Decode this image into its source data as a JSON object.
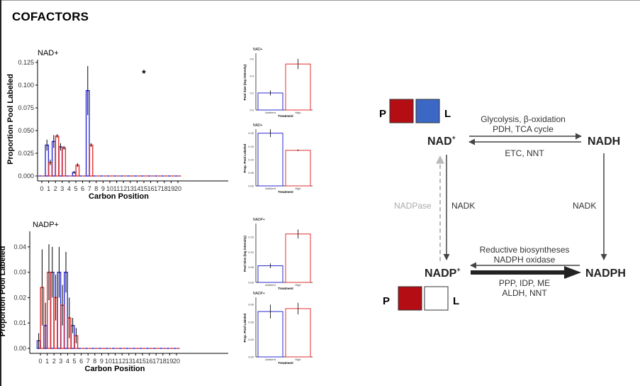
{
  "title": "COFACTORS",
  "colors": {
    "ambient": "#2b2bd0",
    "high": "#e03030",
    "p_box": "#b50d14",
    "l_box_top": "#3b68c4",
    "l_box_bottom": "#ffffff",
    "nadpase_arrow": "#bbbbbb"
  },
  "chart_data": [
    {
      "type": "bar",
      "title": "NAD+",
      "xlabel": "Carbon Position",
      "ylabel": "Proportion Pool Labeled",
      "ylim": [
        0,
        0.125
      ],
      "yticks": [
        "0.000",
        "0.025",
        "0.050",
        "0.075",
        "0.100",
        "0.125"
      ],
      "categories": [
        "0",
        "1",
        "2",
        "3",
        "4",
        "5",
        "6",
        "7",
        "8",
        "9",
        "10",
        "11",
        "12",
        "13",
        "14",
        "15",
        "16",
        "17",
        "18",
        "19",
        "20"
      ],
      "annotation": {
        "text": "*",
        "at_category": "15"
      },
      "series": [
        {
          "values": [
            0,
            0.034,
            0.038,
            0.032,
            0,
            0.004,
            0,
            0.094,
            0,
            0,
            0,
            0,
            0,
            0,
            0,
            0,
            0,
            0,
            0,
            0,
            0
          ],
          "errors": [
            0,
            0.006,
            0.007,
            0.004,
            0,
            0.0015,
            0,
            0.027,
            0,
            0,
            0,
            0,
            0,
            0,
            0,
            0,
            0,
            0,
            0,
            0,
            0
          ]
        },
        {
          "values": [
            0,
            0.015,
            0.044,
            0.031,
            0,
            0.012,
            0,
            0.034,
            0,
            0,
            0,
            0,
            0,
            0,
            0,
            0,
            0,
            0,
            0,
            0,
            0
          ],
          "errors": [
            0,
            0.003,
            0.002,
            0.002,
            0,
            0.002,
            0,
            0.002,
            0,
            0,
            0,
            0,
            0,
            0,
            0,
            0,
            0,
            0,
            0,
            0,
            0
          ]
        }
      ]
    },
    {
      "type": "bar",
      "title": "NADP+",
      "xlabel": "Carbon Position",
      "ylabel": "Proportion Pool Labeled",
      "ylim": [
        0,
        0.045
      ],
      "yticks": [
        "0.00",
        "0.01",
        "0.02",
        "0.03",
        "0.04"
      ],
      "categories": [
        "0",
        "1",
        "2",
        "3",
        "4",
        "5",
        "6",
        "7",
        "8",
        "9",
        "10",
        "11",
        "12",
        "13",
        "14",
        "15",
        "16",
        "17",
        "18",
        "19",
        "20"
      ],
      "series": [
        {
          "values": [
            0.003,
            0.009,
            0.03,
            0.03,
            0.03,
            0.009,
            0,
            0,
            0,
            0,
            0,
            0,
            0,
            0,
            0,
            0,
            0,
            0,
            0,
            0,
            0
          ],
          "errors": [
            0.003,
            0.009,
            0.01,
            0.01,
            0.008,
            0.003,
            0,
            0,
            0,
            0,
            0,
            0,
            0,
            0,
            0,
            0,
            0,
            0,
            0,
            0,
            0
          ]
        },
        {
          "values": [
            0.024,
            0.03,
            0.02,
            0.017,
            0.012,
            0.005,
            0,
            0,
            0,
            0,
            0,
            0,
            0,
            0,
            0,
            0,
            0,
            0,
            0,
            0,
            0
          ],
          "errors": [
            0.015,
            0.011,
            0.009,
            0.008,
            0.008,
            0.003,
            0,
            0,
            0,
            0,
            0,
            0,
            0,
            0,
            0,
            0,
            0,
            0,
            0,
            0,
            0
          ]
        }
      ]
    },
    {
      "type": "bar",
      "title": "NAD+",
      "xlabel": "Treatment",
      "ylabel": "Pool Size (log intensity)",
      "ylim": [
        0,
        0.65
      ],
      "yticks": [
        "0.0",
        "0.2",
        "0.4",
        "0.6"
      ],
      "categories": [
        "Ambient",
        "High"
      ],
      "values": [
        0.2,
        0.54
      ],
      "errors": [
        0.03,
        0.06
      ]
    },
    {
      "type": "bar",
      "title": "NAD+",
      "xlabel": "Treatment",
      "ylabel": "Prop. Pool Labeled",
      "ylim": [
        0,
        0.21
      ],
      "yticks": [
        "0.00",
        "0.05",
        "0.10",
        "0.15",
        "0.20"
      ],
      "categories": [
        "Ambient",
        "High"
      ],
      "values": [
        0.2,
        0.135
      ],
      "errors": [
        0.015,
        0.003
      ]
    },
    {
      "type": "bar",
      "title": "NADP+",
      "xlabel": "Treatment",
      "ylabel": "Pool Size (log intensity)",
      "ylim": [
        0,
        0.19
      ],
      "yticks": [
        "0.00",
        "0.05",
        "0.10",
        "0.15"
      ],
      "categories": [
        "Ambient",
        "High"
      ],
      "values": [
        0.055,
        0.16
      ],
      "errors": [
        0.008,
        0.015
      ]
    },
    {
      "type": "bar",
      "title": "NADP+",
      "xlabel": "Treatment",
      "ylabel": "Prop. Pool Labeled",
      "ylim": [
        0,
        0.1
      ],
      "yticks": [
        "0.00",
        "0.03",
        "0.06",
        "0.09"
      ],
      "categories": [
        "Ambient",
        "High"
      ],
      "values": [
        0.078,
        0.083
      ],
      "errors": [
        0.012,
        0.01
      ]
    }
  ],
  "diagram": {
    "nad": "NAD",
    "nad_sup": "+",
    "nadh": "NADH",
    "nadp": "NADP",
    "nadp_sup": "+",
    "nadph": "NADPH",
    "glycolysis_line1": "Glycolysis, β-oxidation",
    "glycolysis_line2": "PDH, TCA cycle",
    "etc": "ETC, NNT",
    "nadpase": "NADPase",
    "nadk_left": "NADK",
    "nadk_right": "NADK",
    "reductive_line1": "Reductive biosyntheses",
    "reductive_line2": "NADPH oxidase",
    "ppp_line1": "PPP, IDP, ME",
    "ppp_line2": "ALDH, NNT",
    "p_label_top": "P",
    "l_label_top": "L",
    "p_label_bottom": "P",
    "l_label_bottom": "L"
  }
}
